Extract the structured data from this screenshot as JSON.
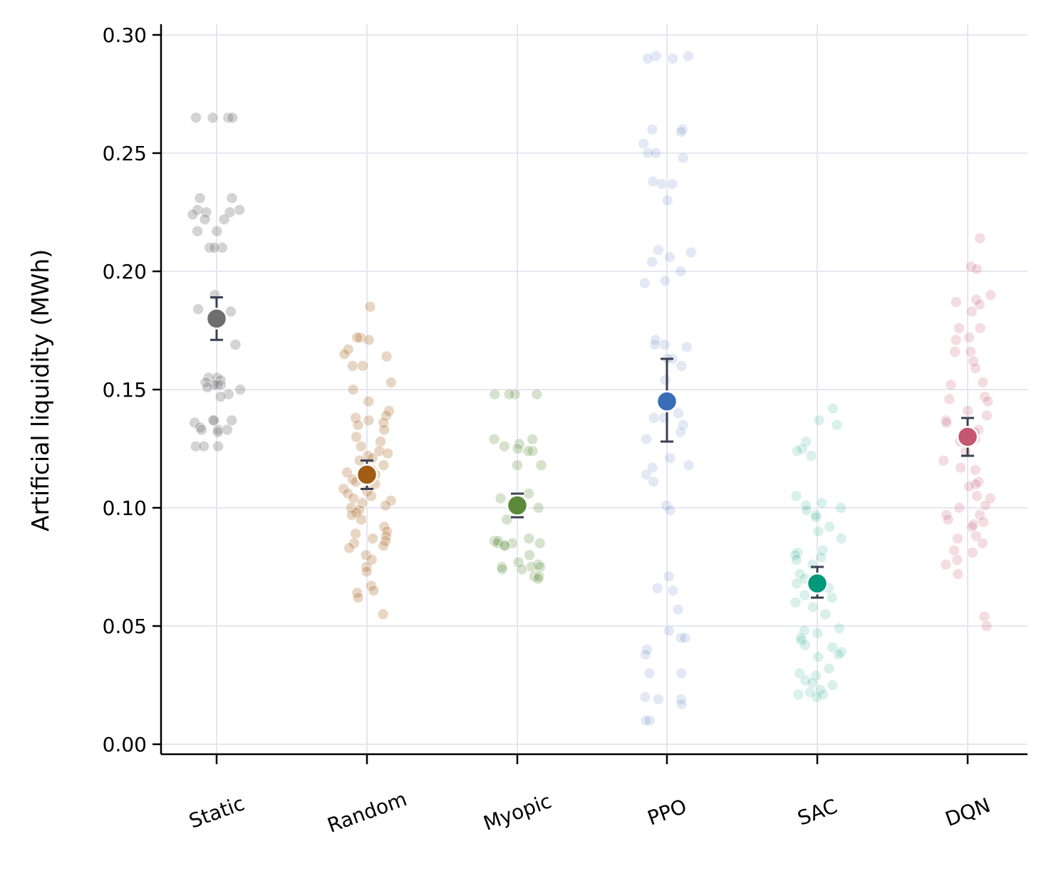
{
  "chart_data": {
    "type": "scatter",
    "title": "",
    "xlabel": "",
    "ylabel": "Artificial liquidity (MWh)",
    "categories": [
      "Static",
      "Random",
      "Myopic",
      "PPO",
      "SAC",
      "DQN"
    ],
    "ylim": [
      -0.004,
      0.305
    ],
    "yticks": [
      "0.00",
      "0.05",
      "0.10",
      "0.15",
      "0.20",
      "0.25",
      "0.30"
    ],
    "grid": true,
    "x_tick_rotation_deg": -20,
    "mean_marker_color": "#ffffff",
    "errorbar_color": "#3a4050",
    "grid_color": "#e6e6f0",
    "series": [
      {
        "category": "Static",
        "color": "#6e6e6e",
        "point_alpha": 0.3,
        "mean": 0.18,
        "ci": [
          0.171,
          0.189
        ],
        "points": [
          0.265,
          0.265,
          0.265,
          0.265,
          0.231,
          0.231,
          0.226,
          0.226,
          0.225,
          0.225,
          0.224,
          0.222,
          0.222,
          0.217,
          0.217,
          0.21,
          0.21,
          0.21,
          0.19,
          0.184,
          0.183,
          0.169,
          0.155,
          0.155,
          0.154,
          0.153,
          0.152,
          0.152,
          0.152,
          0.151,
          0.15,
          0.148,
          0.147,
          0.137,
          0.137,
          0.137,
          0.136,
          0.134,
          0.133,
          0.133,
          0.133,
          0.132,
          0.126,
          0.126,
          0.126
        ]
      },
      {
        "category": "Random",
        "color": "#a35c14",
        "point_alpha": 0.25,
        "mean": 0.114,
        "ci": [
          0.108,
          0.12
        ],
        "points": [
          0.185,
          0.172,
          0.172,
          0.171,
          0.167,
          0.165,
          0.164,
          0.16,
          0.16,
          0.153,
          0.15,
          0.145,
          0.141,
          0.139,
          0.138,
          0.137,
          0.136,
          0.135,
          0.133,
          0.13,
          0.128,
          0.126,
          0.124,
          0.123,
          0.122,
          0.121,
          0.12,
          0.118,
          0.116,
          0.115,
          0.114,
          0.112,
          0.111,
          0.11,
          0.108,
          0.107,
          0.106,
          0.105,
          0.104,
          0.103,
          0.102,
          0.101,
          0.1,
          0.099,
          0.098,
          0.097,
          0.095,
          0.092,
          0.09,
          0.089,
          0.088,
          0.087,
          0.086,
          0.085,
          0.084,
          0.083,
          0.08,
          0.078,
          0.075,
          0.073,
          0.067,
          0.065,
          0.064,
          0.062,
          0.055
        ]
      },
      {
        "category": "Myopic",
        "color": "#5a8a3a",
        "point_alpha": 0.25,
        "mean": 0.101,
        "ci": [
          0.096,
          0.106
        ],
        "points": [
          0.148,
          0.148,
          0.148,
          0.148,
          0.129,
          0.129,
          0.127,
          0.126,
          0.125,
          0.124,
          0.124,
          0.118,
          0.118,
          0.106,
          0.104,
          0.101,
          0.1,
          0.095,
          0.087,
          0.086,
          0.086,
          0.085,
          0.085,
          0.085,
          0.084,
          0.084,
          0.08,
          0.077,
          0.076,
          0.075,
          0.075,
          0.075,
          0.074,
          0.074,
          0.071,
          0.071,
          0.07
        ]
      },
      {
        "category": "PPO",
        "color": "#3a6db8",
        "point_alpha": 0.15,
        "mean": 0.145,
        "ci": [
          0.128,
          0.163
        ],
        "points": [
          0.291,
          0.291,
          0.29,
          0.29,
          0.26,
          0.26,
          0.259,
          0.254,
          0.25,
          0.25,
          0.248,
          0.238,
          0.237,
          0.237,
          0.23,
          0.209,
          0.208,
          0.206,
          0.204,
          0.2,
          0.196,
          0.195,
          0.171,
          0.169,
          0.169,
          0.168,
          0.163,
          0.163,
          0.16,
          0.154,
          0.143,
          0.14,
          0.138,
          0.138,
          0.135,
          0.132,
          0.129,
          0.121,
          0.118,
          0.117,
          0.114,
          0.111,
          0.101,
          0.099,
          0.071,
          0.066,
          0.065,
          0.057,
          0.048,
          0.045,
          0.045,
          0.04,
          0.038,
          0.03,
          0.03,
          0.02,
          0.019,
          0.019,
          0.017,
          0.01,
          0.01
        ]
      },
      {
        "category": "SAC",
        "color": "#00997a",
        "point_alpha": 0.15,
        "mean": 0.068,
        "ci": [
          0.062,
          0.075
        ],
        "points": [
          0.142,
          0.137,
          0.135,
          0.128,
          0.125,
          0.124,
          0.122,
          0.105,
          0.102,
          0.101,
          0.1,
          0.099,
          0.097,
          0.096,
          0.092,
          0.09,
          0.087,
          0.082,
          0.081,
          0.08,
          0.079,
          0.078,
          0.076,
          0.072,
          0.07,
          0.068,
          0.066,
          0.063,
          0.062,
          0.06,
          0.058,
          0.055,
          0.049,
          0.048,
          0.047,
          0.045,
          0.044,
          0.042,
          0.041,
          0.039,
          0.038,
          0.037,
          0.032,
          0.03,
          0.029,
          0.027,
          0.026,
          0.025,
          0.023,
          0.022,
          0.021,
          0.021,
          0.02
        ]
      },
      {
        "category": "DQN",
        "color": "#c45670",
        "point_alpha": 0.2,
        "mean": 0.13,
        "ci": [
          0.122,
          0.138
        ],
        "points": [
          0.214,
          0.202,
          0.201,
          0.19,
          0.188,
          0.187,
          0.186,
          0.183,
          0.176,
          0.176,
          0.172,
          0.171,
          0.166,
          0.166,
          0.162,
          0.159,
          0.153,
          0.152,
          0.147,
          0.146,
          0.145,
          0.141,
          0.139,
          0.137,
          0.136,
          0.133,
          0.132,
          0.129,
          0.128,
          0.124,
          0.12,
          0.117,
          0.116,
          0.111,
          0.11,
          0.109,
          0.105,
          0.104,
          0.101,
          0.1,
          0.097,
          0.097,
          0.095,
          0.094,
          0.093,
          0.092,
          0.088,
          0.087,
          0.085,
          0.082,
          0.081,
          0.078,
          0.076,
          0.072,
          0.054,
          0.05
        ]
      }
    ]
  }
}
